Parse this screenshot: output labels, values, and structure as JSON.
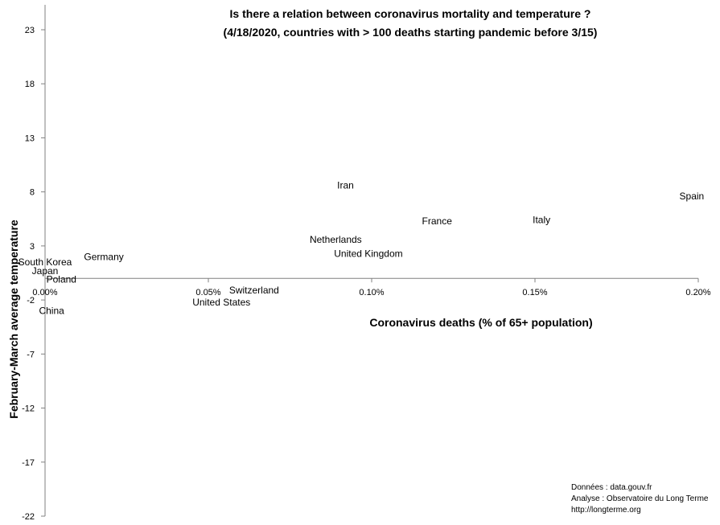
{
  "chart_data": {
    "type": "scatter",
    "title": "Is there a relation between coronavirus mortality and temperature ?",
    "subtitle": "(4/18/2020, countries with > 100 deaths starting pandemic before 3/15)",
    "xlabel": "Coronavirus deaths (% of 65+ population)",
    "ylabel": "February-March average temperature",
    "xlim": [
      0,
      0.002
    ],
    "ylim": [
      -22,
      24
    ],
    "x_ticks": [
      0,
      0.0005,
      0.001,
      0.0015,
      0.002
    ],
    "x_tick_labels": [
      "0.00%",
      "0.05%",
      "0.10%",
      "0.15%",
      "0.20%"
    ],
    "y_ticks": [
      23,
      18,
      13,
      8,
      3,
      -2,
      -7,
      -12,
      -17,
      -22
    ],
    "y_tick_labels": [
      "23",
      "18",
      "13",
      "8",
      "3",
      "-2",
      "-7",
      "-12",
      "-17",
      "-22"
    ],
    "points": [
      {
        "label": "Spain",
        "x": 0.00198,
        "y": 7.6
      },
      {
        "label": "Italy",
        "x": 0.00152,
        "y": 5.4
      },
      {
        "label": "France",
        "x": 0.0012,
        "y": 5.3
      },
      {
        "label": "Iran",
        "x": 0.00092,
        "y": 8.6
      },
      {
        "label": "Netherlands",
        "x": 0.00089,
        "y": 3.6
      },
      {
        "label": "United Kingdom",
        "x": 0.00099,
        "y": 2.3
      },
      {
        "label": "Germany",
        "x": 0.00018,
        "y": 2.0
      },
      {
        "label": "South Korea",
        "x": 0.0,
        "y": 1.5
      },
      {
        "label": "Japan",
        "x": 0.0,
        "y": 0.7
      },
      {
        "label": "Poland",
        "x": 5e-05,
        "y": -0.1
      },
      {
        "label": "China",
        "x": 2e-05,
        "y": -3.0
      },
      {
        "label": "Switzerland",
        "x": 0.00064,
        "y": -1.1
      },
      {
        "label": "United States",
        "x": 0.00054,
        "y": -2.2
      }
    ]
  },
  "credits": {
    "source": "Données : data.gouv.fr",
    "analysis": "Analyse : Observatoire du Long Terme",
    "url": "http://longterme.org"
  }
}
